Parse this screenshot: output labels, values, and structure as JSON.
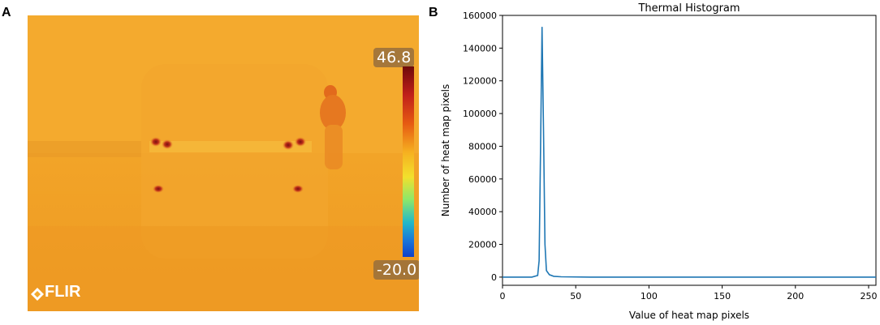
{
  "panel_a": {
    "letter": "A",
    "scale_max": "46.8",
    "scale_min": "-20.0",
    "logo_text": "FLIR",
    "colorbar_icon": "temperature-colorbar",
    "logo_icon": "flir-diamond-icon"
  },
  "panel_b": {
    "letter": "B"
  },
  "chart_data": {
    "type": "line",
    "title": "Thermal Histogram",
    "xlabel": "Value of heat map pixels",
    "ylabel": "Number of heat map pixels",
    "xlim": [
      0,
      255
    ],
    "ylim": [
      -5000,
      160000
    ],
    "x_ticks": [
      0,
      50,
      100,
      150,
      200,
      250
    ],
    "y_ticks": [
      0,
      20000,
      40000,
      60000,
      80000,
      100000,
      120000,
      140000,
      160000
    ],
    "grid": false,
    "line_color": "#1f77b4",
    "series": [
      {
        "x": [
          0,
          10,
          20,
          24,
          25,
          26,
          27,
          28,
          29,
          30,
          32,
          35,
          40,
          60,
          100,
          150,
          200,
          255
        ],
        "y": [
          0,
          0,
          0,
          1000,
          10000,
          80000,
          153000,
          90000,
          20000,
          4000,
          1500,
          500,
          200,
          0,
          0,
          0,
          0,
          0
        ]
      }
    ]
  }
}
